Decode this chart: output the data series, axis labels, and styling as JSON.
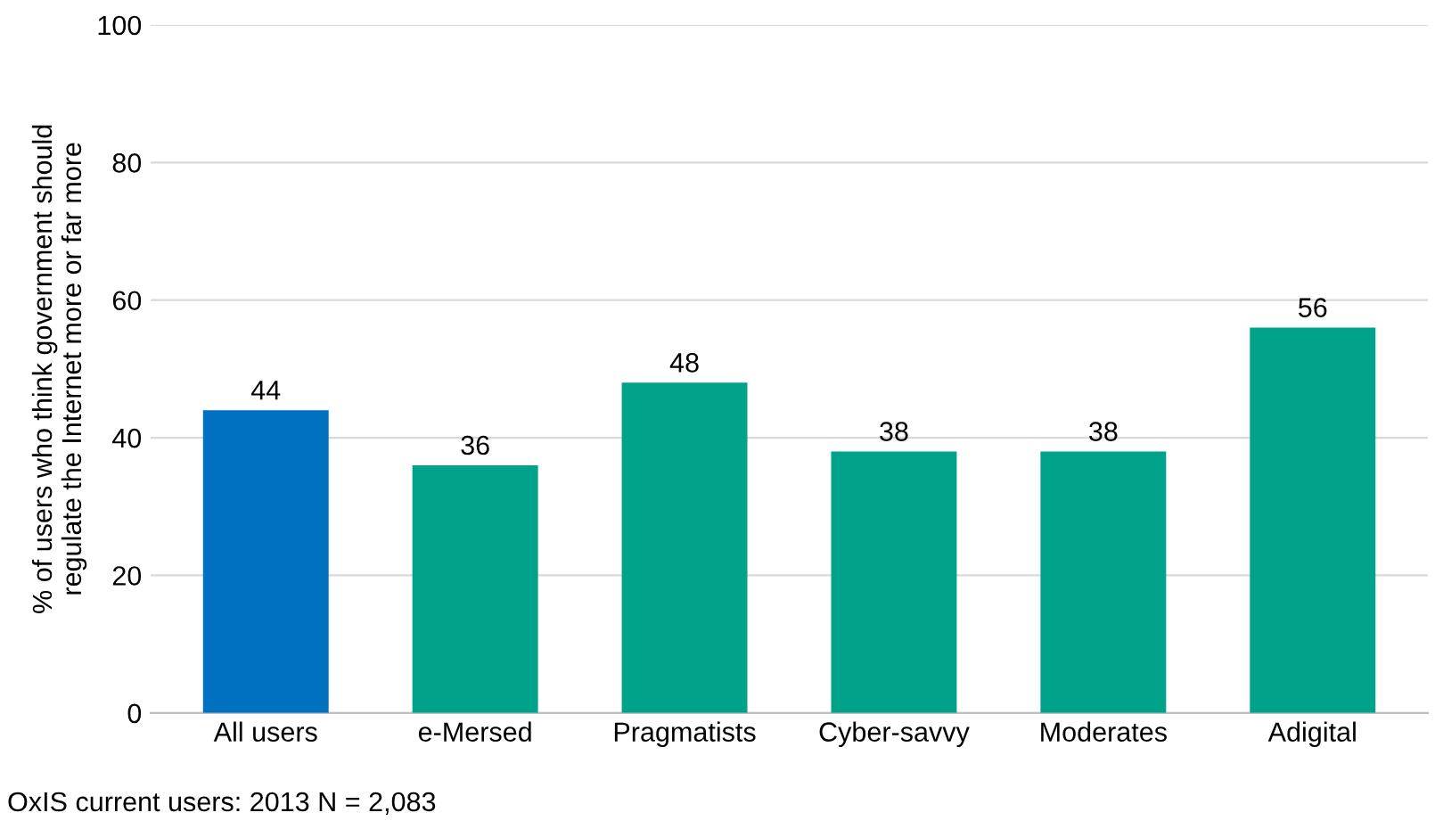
{
  "chart_data": {
    "type": "bar",
    "ylabel": "% of users who think government should\nregulate the Internet more or far more",
    "categories": [
      "All users",
      "e-Mersed",
      "Pragmatists",
      "Cyber-savvy",
      "Moderates",
      "Adigital"
    ],
    "values": [
      44,
      36,
      48,
      38,
      38,
      56
    ],
    "colors": [
      "#0070c0",
      "#00a389",
      "#00a389",
      "#00a389",
      "#00a389",
      "#00a389"
    ],
    "ylim": [
      0,
      100
    ],
    "yticks": [
      0,
      20,
      40,
      60,
      80,
      100
    ],
    "grid": "y",
    "data_labels": true,
    "annotations": [
      "OxIS current users: 2013 N = 2,083"
    ]
  }
}
